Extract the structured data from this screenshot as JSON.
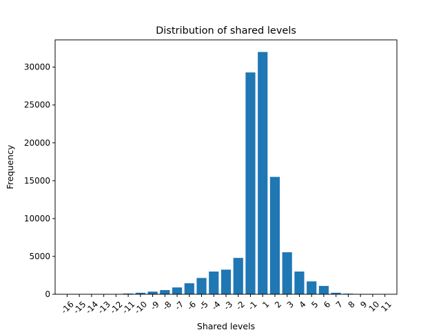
{
  "chart_data": {
    "type": "bar",
    "title": "Distribution of shared levels",
    "xlabel": "Shared levels",
    "ylabel": "Frequency",
    "categories": [
      "-16",
      "-15",
      "-14",
      "-13",
      "-12",
      "-11",
      "-10",
      "-9",
      "-8",
      "-7",
      "-6",
      "-5",
      "-4",
      "-3",
      "-2",
      "-1",
      "1",
      "2",
      "3",
      "4",
      "5",
      "6",
      "7",
      "8",
      "9",
      "10",
      "11"
    ],
    "values": [
      5,
      5,
      10,
      15,
      40,
      100,
      200,
      350,
      550,
      900,
      1450,
      2150,
      3000,
      3250,
      4800,
      29300,
      32000,
      15500,
      5550,
      3000,
      1700,
      1100,
      200,
      80,
      20,
      10,
      5
    ],
    "ylim": [
      0,
      33600
    ],
    "yticks": [
      0,
      5000,
      10000,
      15000,
      20000,
      25000,
      30000
    ],
    "bar_color": "#1f77b4",
    "grid": false,
    "legend": "none"
  }
}
